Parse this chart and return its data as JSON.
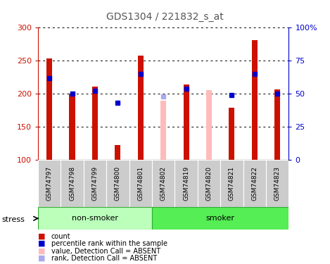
{
  "title": "GDS1304 / 221832_s_at",
  "samples": [
    "GSM74797",
    "GSM74798",
    "GSM74799",
    "GSM74800",
    "GSM74801",
    "GSM74802",
    "GSM74819",
    "GSM74820",
    "GSM74821",
    "GSM74822",
    "GSM74823"
  ],
  "bar_values": [
    253,
    200,
    211,
    122,
    258,
    null,
    214,
    null,
    179,
    281,
    207
  ],
  "bar_absent_values": [
    null,
    null,
    null,
    null,
    null,
    190,
    null,
    205,
    null,
    null,
    null
  ],
  "rank_values": [
    62,
    50,
    52,
    null,
    65,
    null,
    54,
    null,
    49,
    65,
    50
  ],
  "rank_absent_values": [
    null,
    null,
    null,
    null,
    null,
    48,
    null,
    null,
    null,
    null,
    null
  ],
  "rank_dot_only": [
    null,
    null,
    null,
    43,
    null,
    null,
    null,
    null,
    null,
    null,
    null
  ],
  "bar_color": "#cc1100",
  "bar_absent_color": "#ffbbbb",
  "rank_color": "#0000cc",
  "rank_absent_color": "#aaaaee",
  "ylim_left": [
    100,
    300
  ],
  "ylim_right": [
    0,
    100
  ],
  "yticks_left": [
    100,
    150,
    200,
    250,
    300
  ],
  "ytick_labels_left": [
    "100",
    "150",
    "200",
    "250",
    "300"
  ],
  "yticks_right": [
    0,
    25,
    50,
    75,
    100
  ],
  "ytick_labels_right": [
    "0",
    "25",
    "50",
    "75",
    "100%"
  ],
  "group_labels": [
    "non-smoker",
    "smoker"
  ],
  "non_smoker_count": 5,
  "smoker_count": 6,
  "group_color_light": "#bbffbb",
  "group_color_dark": "#55ee55",
  "stress_label": "stress",
  "legend_items": [
    {
      "label": "count",
      "color": "#cc1100"
    },
    {
      "label": "percentile rank within the sample",
      "color": "#0000cc"
    },
    {
      "label": "value, Detection Call = ABSENT",
      "color": "#ffbbbb"
    },
    {
      "label": "rank, Detection Call = ABSENT",
      "color": "#aaaaee"
    }
  ],
  "bar_width": 0.25,
  "rank_bar_width": 0.07,
  "background_color": "#ffffff",
  "grid_color": "#000000",
  "title_color": "#555555"
}
